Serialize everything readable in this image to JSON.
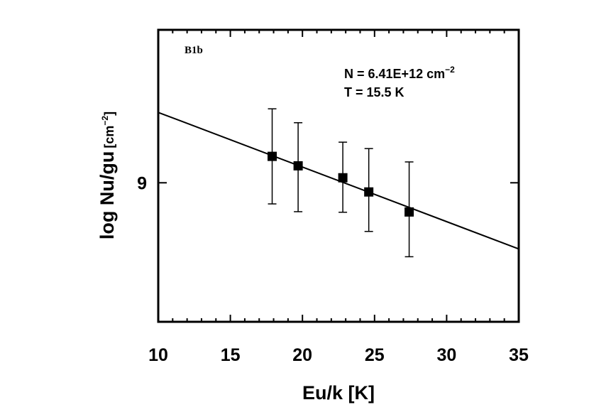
{
  "chart_data": {
    "type": "scatter",
    "panel_label": "B1b",
    "annotations": {
      "n_prefix": "N = 6.41E+12 cm",
      "n_exp": "−2",
      "t_text": "T = 15.5 K"
    },
    "xlabel": "Eu/k [K]",
    "ylabel_main": "log Nu/gu",
    "ylabel_unit_prefix": "[cm",
    "ylabel_unit_exp": "−2",
    "ylabel_unit_suffix": "]",
    "xlim": [
      10,
      35
    ],
    "ylim": [
      8.5,
      9.55
    ],
    "xticks": [
      10,
      15,
      20,
      25,
      30,
      35
    ],
    "yticks": [
      9
    ],
    "points": [
      {
        "x": 17.9,
        "y": 9.095,
        "err_low": 8.924,
        "err_high": 9.266
      },
      {
        "x": 19.7,
        "y": 9.061,
        "err_low": 8.896,
        "err_high": 9.216
      },
      {
        "x": 22.8,
        "y": 9.018,
        "err_low": 8.894,
        "err_high": 9.146
      },
      {
        "x": 24.6,
        "y": 8.967,
        "err_low": 8.825,
        "err_high": 9.123
      },
      {
        "x": 27.4,
        "y": 8.895,
        "err_low": 8.734,
        "err_high": 9.075
      }
    ],
    "fit_line": {
      "x": [
        10,
        35
      ],
      "y": [
        9.253,
        8.762
      ]
    }
  }
}
